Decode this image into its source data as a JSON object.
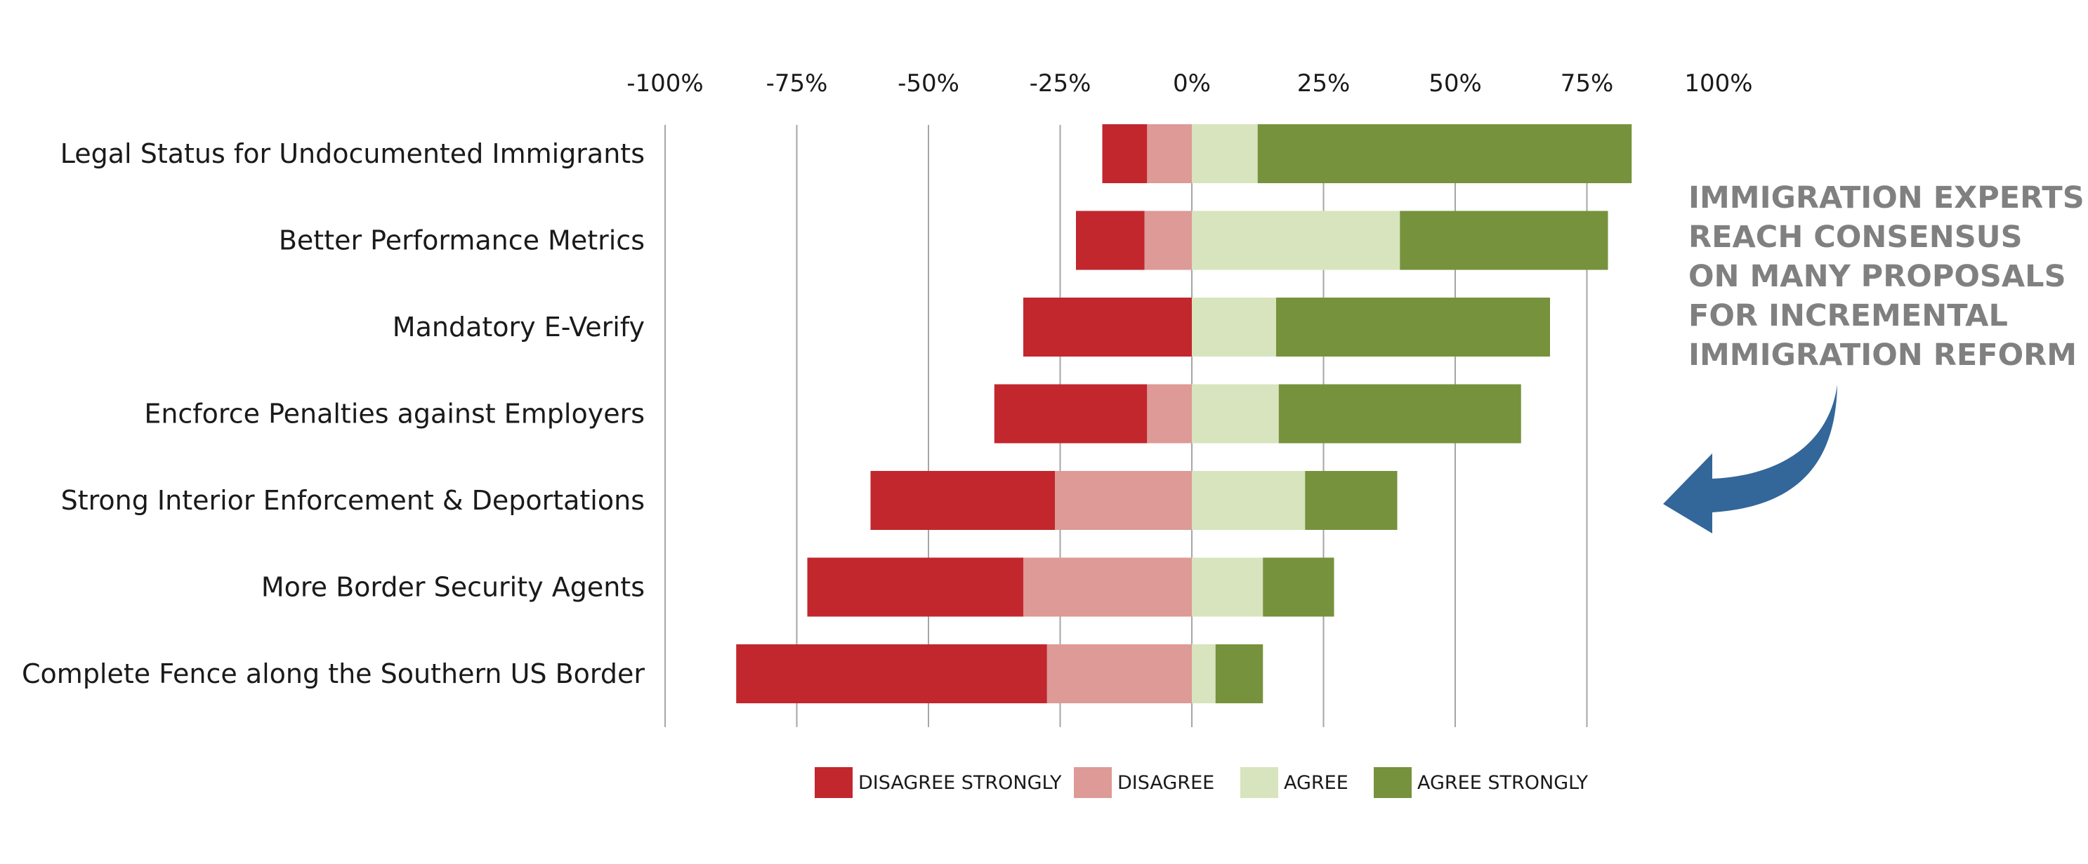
{
  "chart_data": {
    "type": "bar",
    "orientation": "horizontal",
    "stacked": "diverging",
    "categories": [
      "Legal Status for Undocumented Immigrants",
      "Better Performance Metrics",
      "Mandatory E-Verify",
      "Encforce Penalties against Employers",
      "Strong Interior Enforcement & Deportations",
      "More Border Security Agents",
      "Complete Fence along the Southern US Border"
    ],
    "series": [
      {
        "name": "DISAGREE STRONGLY",
        "color": "#c1272d",
        "values": [
          -8.5,
          -13,
          -32,
          -29,
          -35,
          -41,
          -59
        ]
      },
      {
        "name": "DISAGREE",
        "color": "#dd9a96",
        "values": [
          -8.5,
          -9,
          0,
          -8.5,
          -26,
          -32,
          -27.5
        ]
      },
      {
        "name": "AGREE",
        "color": "#d7e4bd",
        "values": [
          12.5,
          39.5,
          16,
          16.5,
          21.5,
          13.5,
          4.5
        ]
      },
      {
        "name": "AGREE STRONGLY",
        "color": "#76923c",
        "values": [
          71,
          39.5,
          52,
          46,
          17.5,
          13.5,
          9
        ]
      }
    ],
    "x_ticks": [
      "-100%",
      "-75%",
      "-50%",
      "-25%",
      "0%",
      "25%",
      "50%",
      "75%",
      "100%"
    ],
    "xlim": [
      -100,
      100
    ],
    "grid": true,
    "legend_position": "bottom"
  },
  "annotation": {
    "lines": [
      "IMMIGRATION EXPERTS",
      "REACH CONSENSUS",
      "ON MANY PROPOSALS",
      "FOR INCREMENTAL",
      "IMMIGRATION REFORM"
    ],
    "color": "#808080"
  },
  "arrow": {
    "icon": "curved-arrow-left-icon",
    "color": "#336699"
  }
}
